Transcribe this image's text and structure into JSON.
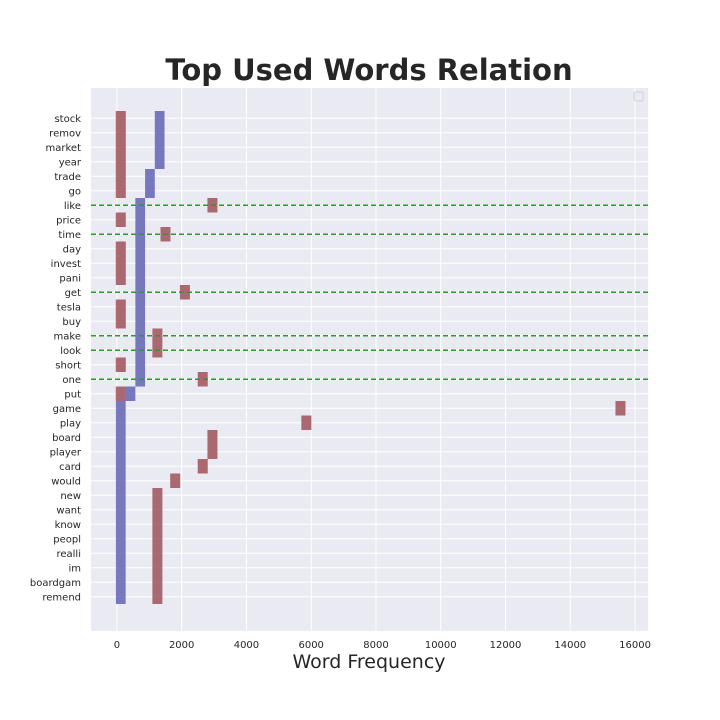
{
  "chart_data": {
    "type": "bar",
    "orientation": "horizontal",
    "title": "Top Used Words Relation",
    "xlabel": "Word Frequency",
    "ylabel": "",
    "xlim": [
      -800,
      16400
    ],
    "xticks": [
      0,
      2000,
      4000,
      6000,
      8000,
      10000,
      12000,
      14000,
      16000
    ],
    "grid": true,
    "legend": "top-right (empty)",
    "categories": [
      "stock",
      "remov",
      "market",
      "year",
      "trade",
      "go",
      "like",
      "price",
      "time",
      "day",
      "invest",
      "pani",
      "get",
      "tesla",
      "buy",
      "make",
      "look",
      "short",
      "one",
      "put",
      "game",
      "play",
      "board",
      "player",
      "card",
      "would",
      "new",
      "want",
      "know",
      "peopl",
      "realli",
      "im",
      "boardgam",
      "remend"
    ],
    "highlighted_categories": [
      "like",
      "time",
      "get",
      "make",
      "look",
      "one"
    ],
    "series": [
      {
        "color": "#6a6ab8",
        "segments": [
          {
            "from": "stock",
            "to": "year",
            "x0": 1170,
            "x1": 1470
          },
          {
            "from": "trade",
            "to": "go",
            "x0": 870,
            "x1": 1170
          },
          {
            "from": "like",
            "to": "one",
            "x0": 570,
            "x1": 870
          },
          {
            "from": "put",
            "to": "put",
            "x0": 270,
            "x1": 570
          },
          {
            "from": "game",
            "to": "remend",
            "x0": -30,
            "x1": 270
          }
        ]
      },
      {
        "color": "#a35a63",
        "points": [
          {
            "category": "stock",
            "value": 120
          },
          {
            "category": "remov",
            "value": 120
          },
          {
            "category": "market",
            "value": 120
          },
          {
            "category": "year",
            "value": 120
          },
          {
            "category": "trade",
            "value": 120
          },
          {
            "category": "go",
            "value": 120
          },
          {
            "category": "like",
            "value": 2950
          },
          {
            "category": "price",
            "value": 120
          },
          {
            "category": "time",
            "value": 1500
          },
          {
            "category": "day",
            "value": 120
          },
          {
            "category": "invest",
            "value": 120
          },
          {
            "category": "pani",
            "value": 120
          },
          {
            "category": "get",
            "value": 2100
          },
          {
            "category": "tesla",
            "value": 120
          },
          {
            "category": "buy",
            "value": 120
          },
          {
            "category": "make",
            "value": 1250
          },
          {
            "category": "look",
            "value": 1250
          },
          {
            "category": "short",
            "value": 120
          },
          {
            "category": "one",
            "value": 2650
          },
          {
            "category": "put",
            "value": 120
          },
          {
            "category": "game",
            "value": 15550
          },
          {
            "category": "play",
            "value": 5850
          },
          {
            "category": "board",
            "value": 2950
          },
          {
            "category": "player",
            "value": 2950
          },
          {
            "category": "card",
            "value": 2650
          },
          {
            "category": "would",
            "value": 1800
          },
          {
            "category": "new",
            "value": 1250
          },
          {
            "category": "want",
            "value": 1250
          },
          {
            "category": "know",
            "value": 1250
          },
          {
            "category": "peopl",
            "value": 1250
          },
          {
            "category": "realli",
            "value": 1250
          },
          {
            "category": "im",
            "value": 1250
          },
          {
            "category": "boardgam",
            "value": 1250
          },
          {
            "category": "remend",
            "value": 1250
          }
        ]
      }
    ],
    "colors": {
      "background": "#eaeaf2",
      "grid": "#ffffff",
      "highlight_line": "#2a9a2a"
    }
  }
}
